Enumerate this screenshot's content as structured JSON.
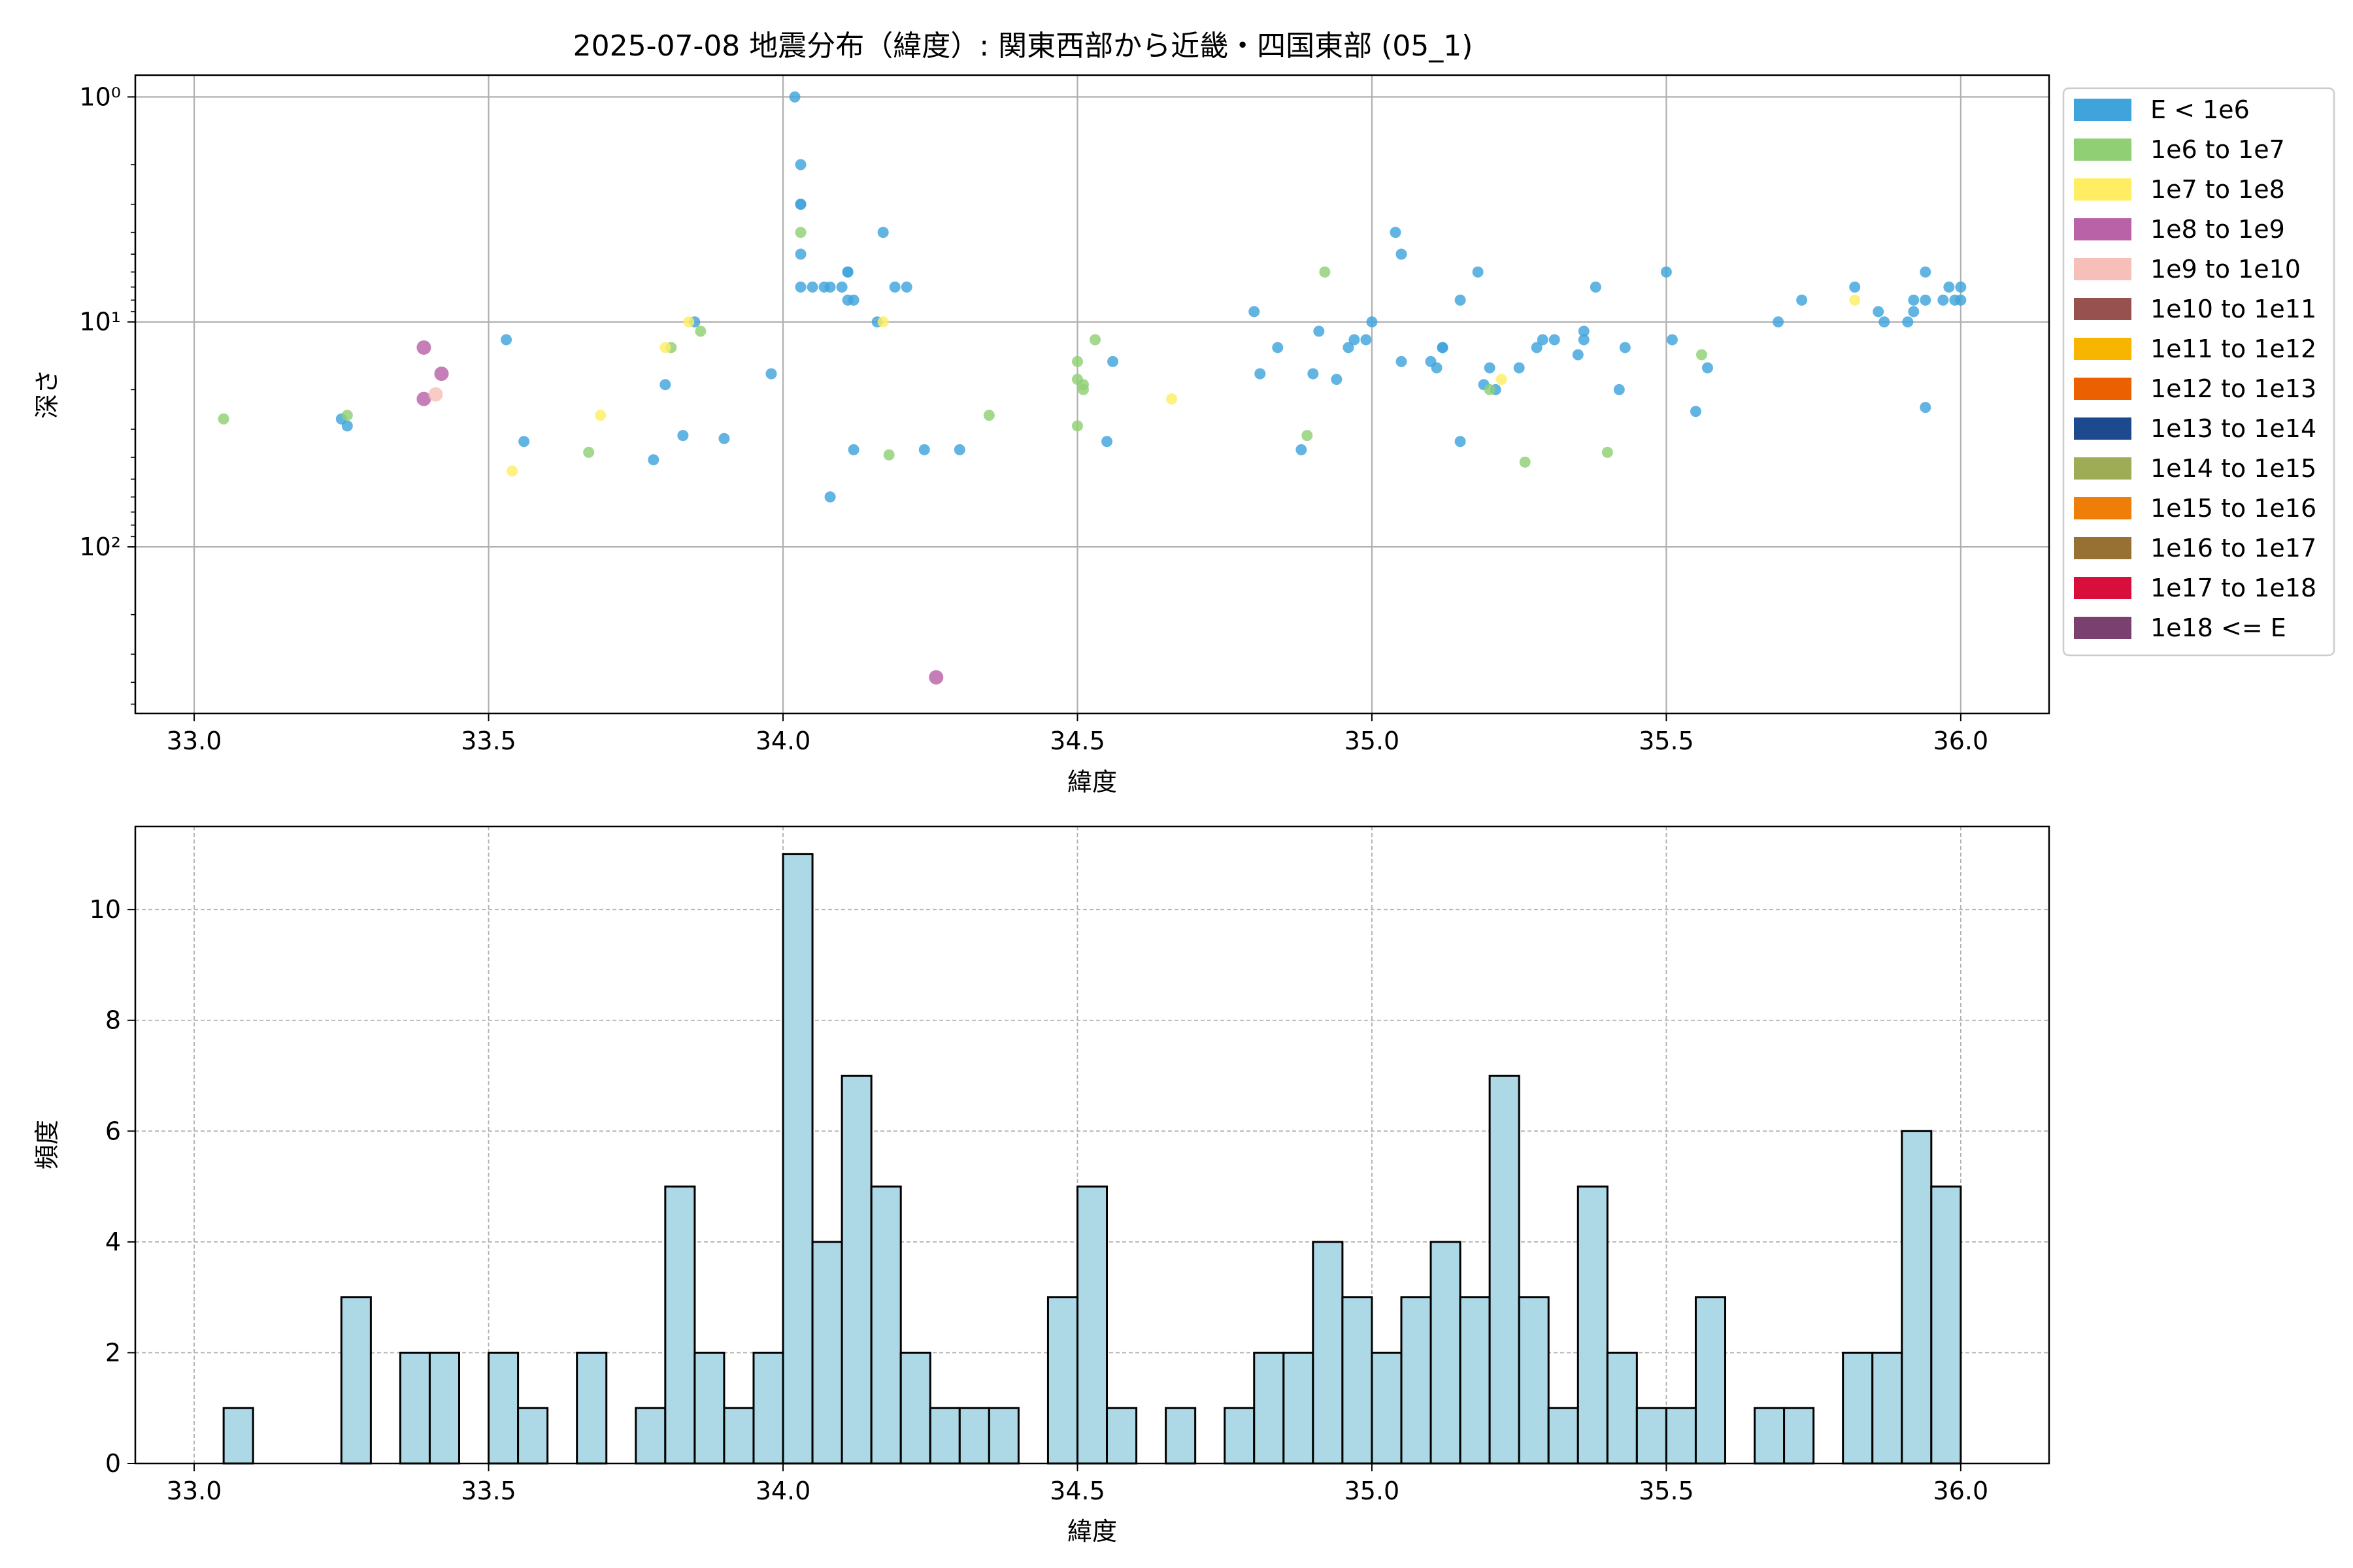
{
  "chart_data": [
    {
      "type": "scatter",
      "title": "2025-07-08 地震分布（緯度）: 関東西部から近畿・四国東部 (05_1)",
      "xlabel": "緯度",
      "ylabel": "深さ",
      "xlim": [
        32.9,
        36.15
      ],
      "xticks": [
        33.0,
        33.5,
        34.0,
        34.5,
        35.0,
        35.5,
        36.0
      ],
      "xtick_labels": [
        "33.0",
        "33.5",
        "34.0",
        "34.5",
        "35.0",
        "35.5",
        "36.0"
      ],
      "yscale": "log",
      "y_inverted": true,
      "ylim": [
        0.8,
        550
      ],
      "yticks": [
        1,
        10,
        100
      ],
      "ytick_labels": [
        "10⁰",
        "10¹",
        "10²"
      ],
      "grid": true,
      "legend_position": "outside-right",
      "legend": [
        {
          "label": "E < 1e6",
          "color": "#3fa3dc"
        },
        {
          "label": "1e6 to 1e7",
          "color": "#90cf74"
        },
        {
          "label": "1e7 to 1e8",
          "color": "#ffee63"
        },
        {
          "label": "1e8 to 1e9",
          "color": "#b962a8"
        },
        {
          "label": "1e9 to 1e10",
          "color": "#f7bfb9"
        },
        {
          "label": "1e10 to 1e11",
          "color": "#97514e"
        },
        {
          "label": "1e11 to 1e12",
          "color": "#f8b500"
        },
        {
          "label": "1e12 to 1e13",
          "color": "#eb6101"
        },
        {
          "label": "1e13 to 1e14",
          "color": "#1d4a8f"
        },
        {
          "label": "1e14 to 1e15",
          "color": "#9ead55"
        },
        {
          "label": "1e15 to 1e16",
          "color": "#ef7e09"
        },
        {
          "label": "1e16 to 1e17",
          "color": "#977033"
        },
        {
          "label": "1e17 to 1e18",
          "color": "#d80e3c"
        },
        {
          "label": "1e18 <= E",
          "color": "#7a406f"
        }
      ],
      "series": [
        {
          "energy_class": "E < 1e6",
          "points": [
            [
              33.25,
              27
            ],
            [
              33.26,
              29
            ],
            [
              33.53,
              12
            ],
            [
              33.56,
              34
            ],
            [
              33.78,
              41
            ],
            [
              33.8,
              19
            ],
            [
              33.83,
              32
            ],
            [
              33.85,
              10
            ],
            [
              33.9,
              33
            ],
            [
              33.98,
              17
            ],
            [
              34.02,
              1
            ],
            [
              34.03,
              2
            ],
            [
              34.03,
              3
            ],
            [
              34.03,
              3
            ],
            [
              34.03,
              5
            ],
            [
              34.03,
              7
            ],
            [
              34.05,
              7
            ],
            [
              34.07,
              7
            ],
            [
              34.08,
              7
            ],
            [
              34.08,
              60
            ],
            [
              34.1,
              7
            ],
            [
              34.11,
              6
            ],
            [
              34.11,
              6
            ],
            [
              34.11,
              8
            ],
            [
              34.12,
              8
            ],
            [
              34.12,
              37
            ],
            [
              34.17,
              4
            ],
            [
              34.16,
              10
            ],
            [
              34.19,
              7
            ],
            [
              34.21,
              7
            ],
            [
              34.24,
              37
            ],
            [
              34.3,
              37
            ],
            [
              34.55,
              34
            ],
            [
              34.56,
              15
            ],
            [
              34.8,
              9
            ],
            [
              34.81,
              17
            ],
            [
              34.84,
              13
            ],
            [
              34.88,
              37
            ],
            [
              34.9,
              17
            ],
            [
              34.91,
              11
            ],
            [
              34.94,
              18
            ],
            [
              34.96,
              13
            ],
            [
              34.97,
              12
            ],
            [
              34.99,
              12
            ],
            [
              35.0,
              10
            ],
            [
              35.04,
              4
            ],
            [
              35.05,
              5
            ],
            [
              35.05,
              15
            ],
            [
              35.1,
              15
            ],
            [
              35.11,
              16
            ],
            [
              35.12,
              13
            ],
            [
              35.12,
              13
            ],
            [
              35.15,
              8
            ],
            [
              35.15,
              34
            ],
            [
              35.18,
              6
            ],
            [
              35.19,
              19
            ],
            [
              35.2,
              16
            ],
            [
              35.21,
              20
            ],
            [
              35.25,
              16
            ],
            [
              35.28,
              13
            ],
            [
              35.29,
              12
            ],
            [
              35.31,
              12
            ],
            [
              35.35,
              14
            ],
            [
              35.36,
              11
            ],
            [
              35.36,
              12
            ],
            [
              35.38,
              7
            ],
            [
              35.42,
              20
            ],
            [
              35.43,
              13
            ],
            [
              35.5,
              6
            ],
            [
              35.51,
              12
            ],
            [
              35.55,
              25
            ],
            [
              35.57,
              16
            ],
            [
              35.69,
              10
            ],
            [
              35.73,
              8
            ],
            [
              35.82,
              7
            ],
            [
              35.86,
              9
            ],
            [
              35.87,
              10
            ],
            [
              35.91,
              10
            ],
            [
              35.92,
              8
            ],
            [
              35.92,
              9
            ],
            [
              35.94,
              6
            ],
            [
              35.94,
              8
            ],
            [
              35.94,
              24
            ],
            [
              35.97,
              8
            ],
            [
              35.98,
              7
            ],
            [
              35.99,
              8
            ],
            [
              36.0,
              7
            ],
            [
              36.0,
              8
            ]
          ]
        },
        {
          "energy_class": "1e6 to 1e7",
          "points": [
            [
              33.05,
              27
            ],
            [
              33.26,
              26
            ],
            [
              33.67,
              38
            ],
            [
              33.81,
              13
            ],
            [
              33.86,
              11
            ],
            [
              34.03,
              4
            ],
            [
              34.18,
              39
            ],
            [
              34.35,
              26
            ],
            [
              34.5,
              15
            ],
            [
              34.5,
              18
            ],
            [
              34.5,
              29
            ],
            [
              34.51,
              19
            ],
            [
              34.51,
              20
            ],
            [
              34.53,
              12
            ],
            [
              34.89,
              32
            ],
            [
              34.92,
              6
            ],
            [
              35.2,
              20
            ],
            [
              35.26,
              42
            ],
            [
              35.4,
              38
            ],
            [
              35.56,
              14
            ]
          ]
        },
        {
          "energy_class": "1e7 to 1e8",
          "points": [
            [
              33.54,
              46
            ],
            [
              33.69,
              26
            ],
            [
              33.8,
              13
            ],
            [
              33.84,
              10
            ],
            [
              34.17,
              10
            ],
            [
              34.66,
              22
            ],
            [
              35.22,
              18
            ],
            [
              35.82,
              8
            ]
          ]
        },
        {
          "energy_class": "1e8 to 1e9",
          "points": [
            [
              33.39,
              13
            ],
            [
              33.39,
              22
            ],
            [
              33.42,
              17
            ],
            [
              34.26,
              380
            ]
          ]
        },
        {
          "energy_class": "1e9 to 1e10",
          "points": [
            [
              33.41,
              21
            ]
          ]
        }
      ]
    },
    {
      "type": "bar",
      "subtype": "histogram",
      "xlabel": "緯度",
      "ylabel": "頻度",
      "xlim": [
        32.9,
        36.15
      ],
      "ylim": [
        0,
        11.5
      ],
      "xticks": [
        33.0,
        33.5,
        34.0,
        34.5,
        35.0,
        35.5,
        36.0
      ],
      "xtick_labels": [
        "33.0",
        "33.5",
        "34.0",
        "34.5",
        "35.0",
        "35.5",
        "36.0"
      ],
      "yticks": [
        0,
        2,
        4,
        6,
        8,
        10
      ],
      "ytick_labels": [
        "0",
        "2",
        "4",
        "6",
        "8",
        "10"
      ],
      "grid": true,
      "bar_color": "#add8e6",
      "bin_start": 33.0,
      "bin_width": 0.05,
      "counts": [
        0,
        1,
        0,
        0,
        0,
        3,
        0,
        2,
        2,
        0,
        2,
        1,
        0,
        2,
        0,
        1,
        5,
        2,
        1,
        2,
        11,
        4,
        7,
        5,
        2,
        1,
        1,
        1,
        0,
        3,
        5,
        1,
        0,
        1,
        0,
        1,
        2,
        2,
        4,
        3,
        2,
        3,
        4,
        3,
        7,
        3,
        1,
        5,
        2,
        1,
        1,
        3,
        0,
        1,
        1,
        0,
        2,
        2,
        6,
        5
      ]
    }
  ]
}
